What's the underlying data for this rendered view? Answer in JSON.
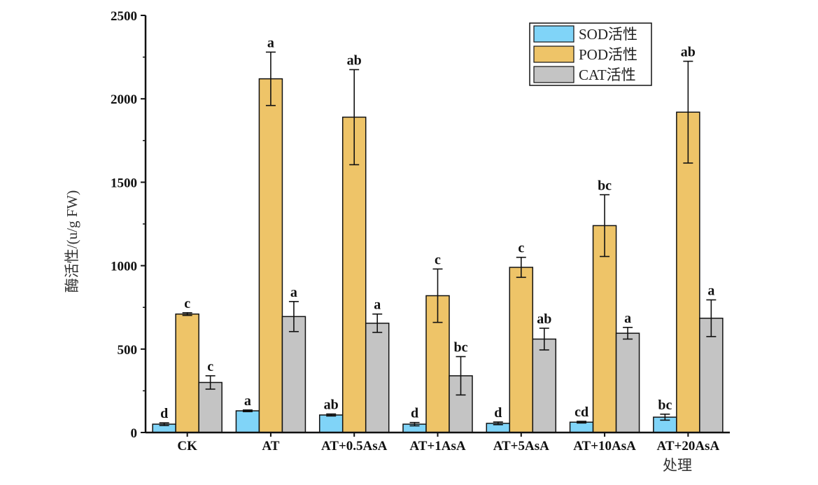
{
  "chart_data": {
    "type": "bar",
    "categories": [
      "CK",
      "AT",
      "AT+0.5AsA",
      "AT+1AsA",
      "AT+5AsA",
      "AT+10AsA",
      "AT+20AsA"
    ],
    "series": [
      {
        "name": "SOD活性",
        "color": "#80D4F8",
        "values": [
          50,
          130,
          105,
          50,
          55,
          62,
          92
        ],
        "errors": [
          8,
          5,
          6,
          10,
          8,
          5,
          18
        ],
        "letters": [
          "d",
          "a",
          "ab",
          "d",
          "d",
          "cd",
          "bc"
        ]
      },
      {
        "name": "POD活性",
        "color": "#EEC468",
        "values": [
          710,
          2120,
          1890,
          820,
          990,
          1240,
          1920
        ],
        "errors": [
          8,
          160,
          285,
          160,
          60,
          185,
          305
        ],
        "letters": [
          "c",
          "a",
          "ab",
          "c",
          "c",
          "bc",
          "ab"
        ]
      },
      {
        "name": "CAT活性",
        "color": "#C4C4C4",
        "values": [
          300,
          695,
          655,
          340,
          560,
          595,
          685
        ],
        "errors": [
          40,
          90,
          55,
          115,
          65,
          35,
          110
        ],
        "letters": [
          "c",
          "a",
          "a",
          "bc",
          "ab",
          "a",
          "a"
        ]
      }
    ],
    "xlabel": "处理",
    "ylabel": "酶活性/(u/g FW)",
    "ylim": [
      0,
      2500
    ],
    "yticks": [
      0,
      500,
      1000,
      1500,
      2000,
      2500
    ],
    "ytick_labels": [
      "0",
      "500",
      "1000",
      "1500",
      "2000",
      "2500"
    ],
    "legend_position": "top-right",
    "grid": false
  }
}
